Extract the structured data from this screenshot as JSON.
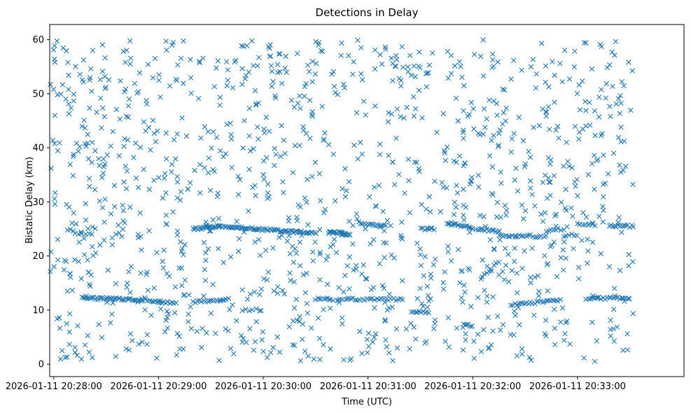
{
  "chart_data": {
    "type": "scatter",
    "title": "Detections in Delay",
    "xlabel": "Time (UTC)",
    "ylabel": "Bistatic Delay (km)",
    "x_unit": "seconds after 2026-01-11 20:28:00 UTC",
    "xlim": [
      -2.3,
      361
    ],
    "ylim": [
      -2.3,
      62.8
    ],
    "x_ticks": [
      {
        "value": 0,
        "label": "2026-01-11 20:28:00"
      },
      {
        "value": 60,
        "label": "2026-01-11 20:29:00"
      },
      {
        "value": 120,
        "label": "2026-01-11 20:30:00"
      },
      {
        "value": 180,
        "label": "2026-01-11 20:31:00"
      },
      {
        "value": 240,
        "label": "2026-01-11 20:32:00"
      },
      {
        "value": 300,
        "label": "2026-01-11 20:33:00"
      }
    ],
    "y_ticks": [
      0,
      10,
      20,
      30,
      40,
      50,
      60
    ],
    "marker": "x",
    "color": "#1f77b4",
    "grid": false,
    "legend": "none",
    "series": [
      {
        "tracks": [
          {
            "x0": 16,
            "y0": 12.2,
            "x1": 50,
            "y1": 11.9,
            "n": 40
          },
          {
            "x0": 50,
            "y0": 11.9,
            "x1": 70,
            "y1": 11.2,
            "n": 18
          },
          {
            "x0": 80,
            "y0": 11.5,
            "x1": 100,
            "y1": 12.0,
            "n": 18
          },
          {
            "x0": 108,
            "y0": 10.0,
            "x1": 118,
            "y1": 10.0,
            "n": 6
          },
          {
            "x0": 150,
            "y0": 12.0,
            "x1": 160,
            "y1": 12.0,
            "n": 10
          },
          {
            "x0": 163,
            "y0": 12.0,
            "x1": 200,
            "y1": 12.0,
            "n": 28
          },
          {
            "x0": 205,
            "y0": 9.8,
            "x1": 215,
            "y1": 9.5,
            "n": 10
          },
          {
            "x0": 235,
            "y0": 7.5,
            "x1": 240,
            "y1": 7.0,
            "n": 5
          },
          {
            "x0": 245,
            "y0": 16.0,
            "x1": 255,
            "y1": 19.0,
            "n": 8
          },
          {
            "x0": 262,
            "y0": 11.0,
            "x1": 290,
            "y1": 11.8,
            "n": 26
          },
          {
            "x0": 305,
            "y0": 12.2,
            "x1": 330,
            "y1": 12.2,
            "n": 22
          },
          {
            "x0": 80,
            "y0": 25.0,
            "x1": 95,
            "y1": 25.5,
            "n": 24
          },
          {
            "x0": 95,
            "y0": 25.5,
            "x1": 150,
            "y1": 24.2,
            "n": 70
          },
          {
            "x0": 158,
            "y0": 24.5,
            "x1": 170,
            "y1": 24.0,
            "n": 24
          },
          {
            "x0": 175,
            "y0": 26.1,
            "x1": 190,
            "y1": 25.6,
            "n": 16
          },
          {
            "x0": 210,
            "y0": 25.0,
            "x1": 218,
            "y1": 25.0,
            "n": 8
          },
          {
            "x0": 225,
            "y0": 26.0,
            "x1": 240,
            "y1": 25.2,
            "n": 18
          },
          {
            "x0": 242,
            "y0": 25.0,
            "x1": 255,
            "y1": 24.5,
            "n": 14
          },
          {
            "x0": 255,
            "y0": 23.8,
            "x1": 282,
            "y1": 23.6,
            "n": 22
          },
          {
            "x0": 282,
            "y0": 24.5,
            "x1": 292,
            "y1": 25.0,
            "n": 8
          },
          {
            "x0": 292,
            "y0": 23.8,
            "x1": 300,
            "y1": 24.0,
            "n": 6
          },
          {
            "x0": 300,
            "y0": 25.8,
            "x1": 310,
            "y1": 25.8,
            "n": 8
          },
          {
            "x0": 318,
            "y0": 25.5,
            "x1": 332,
            "y1": 25.5,
            "n": 14
          },
          {
            "x0": 12,
            "y0": 24.0,
            "x1": 22,
            "y1": 24.0,
            "n": 6
          }
        ],
        "clutter": {
          "x_range": [
            -2,
            332
          ],
          "y_range": [
            0.5,
            60
          ],
          "count": 1250,
          "seed": 20260111
        }
      }
    ]
  }
}
